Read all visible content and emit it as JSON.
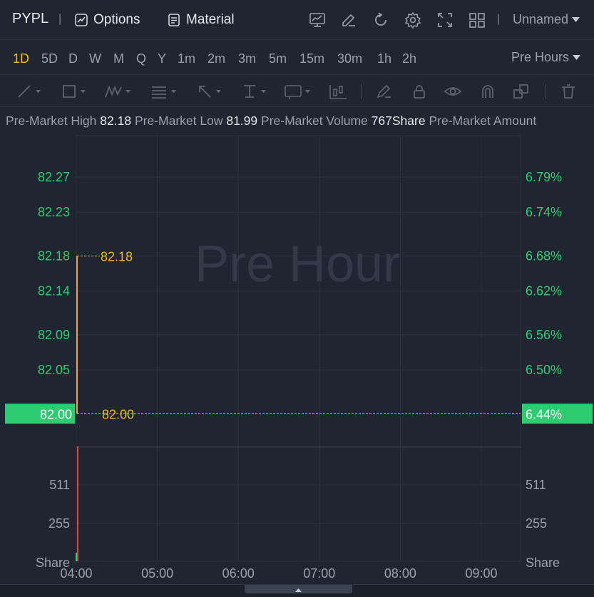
{
  "header": {
    "symbol": "PYPL",
    "separator": "|",
    "options_label": "Options",
    "material_label": "Material",
    "layout_separator": "|",
    "layout_name": "Unnamed",
    "icons": [
      "chart-indicator-icon",
      "draw-edit-icon",
      "refresh-icon",
      "settings-icon",
      "fullscreen-icon",
      "grid-layout-icon"
    ]
  },
  "periods": {
    "items": [
      "1D",
      "5D",
      "D",
      "W",
      "M",
      "Q",
      "Y",
      "1m",
      "2m",
      "3m",
      "5m",
      "15m",
      "30m",
      "1h",
      "2h"
    ],
    "active": "1D",
    "session_label": "Pre Hours"
  },
  "drawing_tools": [
    "trend-line-icon",
    "rectangle-icon",
    "pattern-icon",
    "fibonacci-icon",
    "arrow-icon",
    "measure-icon",
    "text-note-icon",
    "candle-pattern-icon",
    "brush-icon",
    "lock-icon",
    "eye-icon",
    "magnet-icon",
    "layers-icon",
    "trash-icon"
  ],
  "stats": [
    {
      "label": "Pre-Market High",
      "value": "82.18"
    },
    {
      "label": "Pre-Market Low",
      "value": "81.99"
    },
    {
      "label": "Pre-Market Volume",
      "value": "767Share"
    },
    {
      "label": "Pre-Market Amount",
      "value": ""
    }
  ],
  "colors": {
    "up": "#2ecc71",
    "price_label_bg": "#2ecc71",
    "accent": "#f0b90b",
    "volume_bar": "#e0433b",
    "grid": "#2b333f"
  },
  "chart_data": {
    "type": "line",
    "watermark": "Pre Hour",
    "price_axis": {
      "left_ticks": [
        "82.27",
        "82.23",
        "82.18",
        "82.14",
        "82.09",
        "82.05"
      ],
      "right_ticks": [
        "6.79%",
        "6.74%",
        "6.68%",
        "6.62%",
        "6.56%",
        "6.50%"
      ],
      "tick_values": [
        82.27,
        82.23,
        82.18,
        82.14,
        82.09,
        82.05
      ],
      "current_price_label": "82.00",
      "current_pct_label": "6.44%"
    },
    "x_ticks": [
      "04:00",
      "05:00",
      "06:00",
      "07:00",
      "08:00",
      "09:00"
    ],
    "series": [
      {
        "x": [
          "04:00",
          "04:01"
        ],
        "y": [
          82.0,
          82.18
        ]
      }
    ],
    "annotations": [
      {
        "label": "82.18",
        "value": 82.18
      },
      {
        "label": "82.00",
        "value": 82.0
      }
    ],
    "volume": {
      "ticks": [
        "511",
        "255"
      ],
      "tick_values": [
        511,
        255
      ],
      "unit_left": "Share",
      "unit_right": "Share",
      "bars": [
        {
          "x": "04:00",
          "value": 767
        }
      ]
    }
  }
}
